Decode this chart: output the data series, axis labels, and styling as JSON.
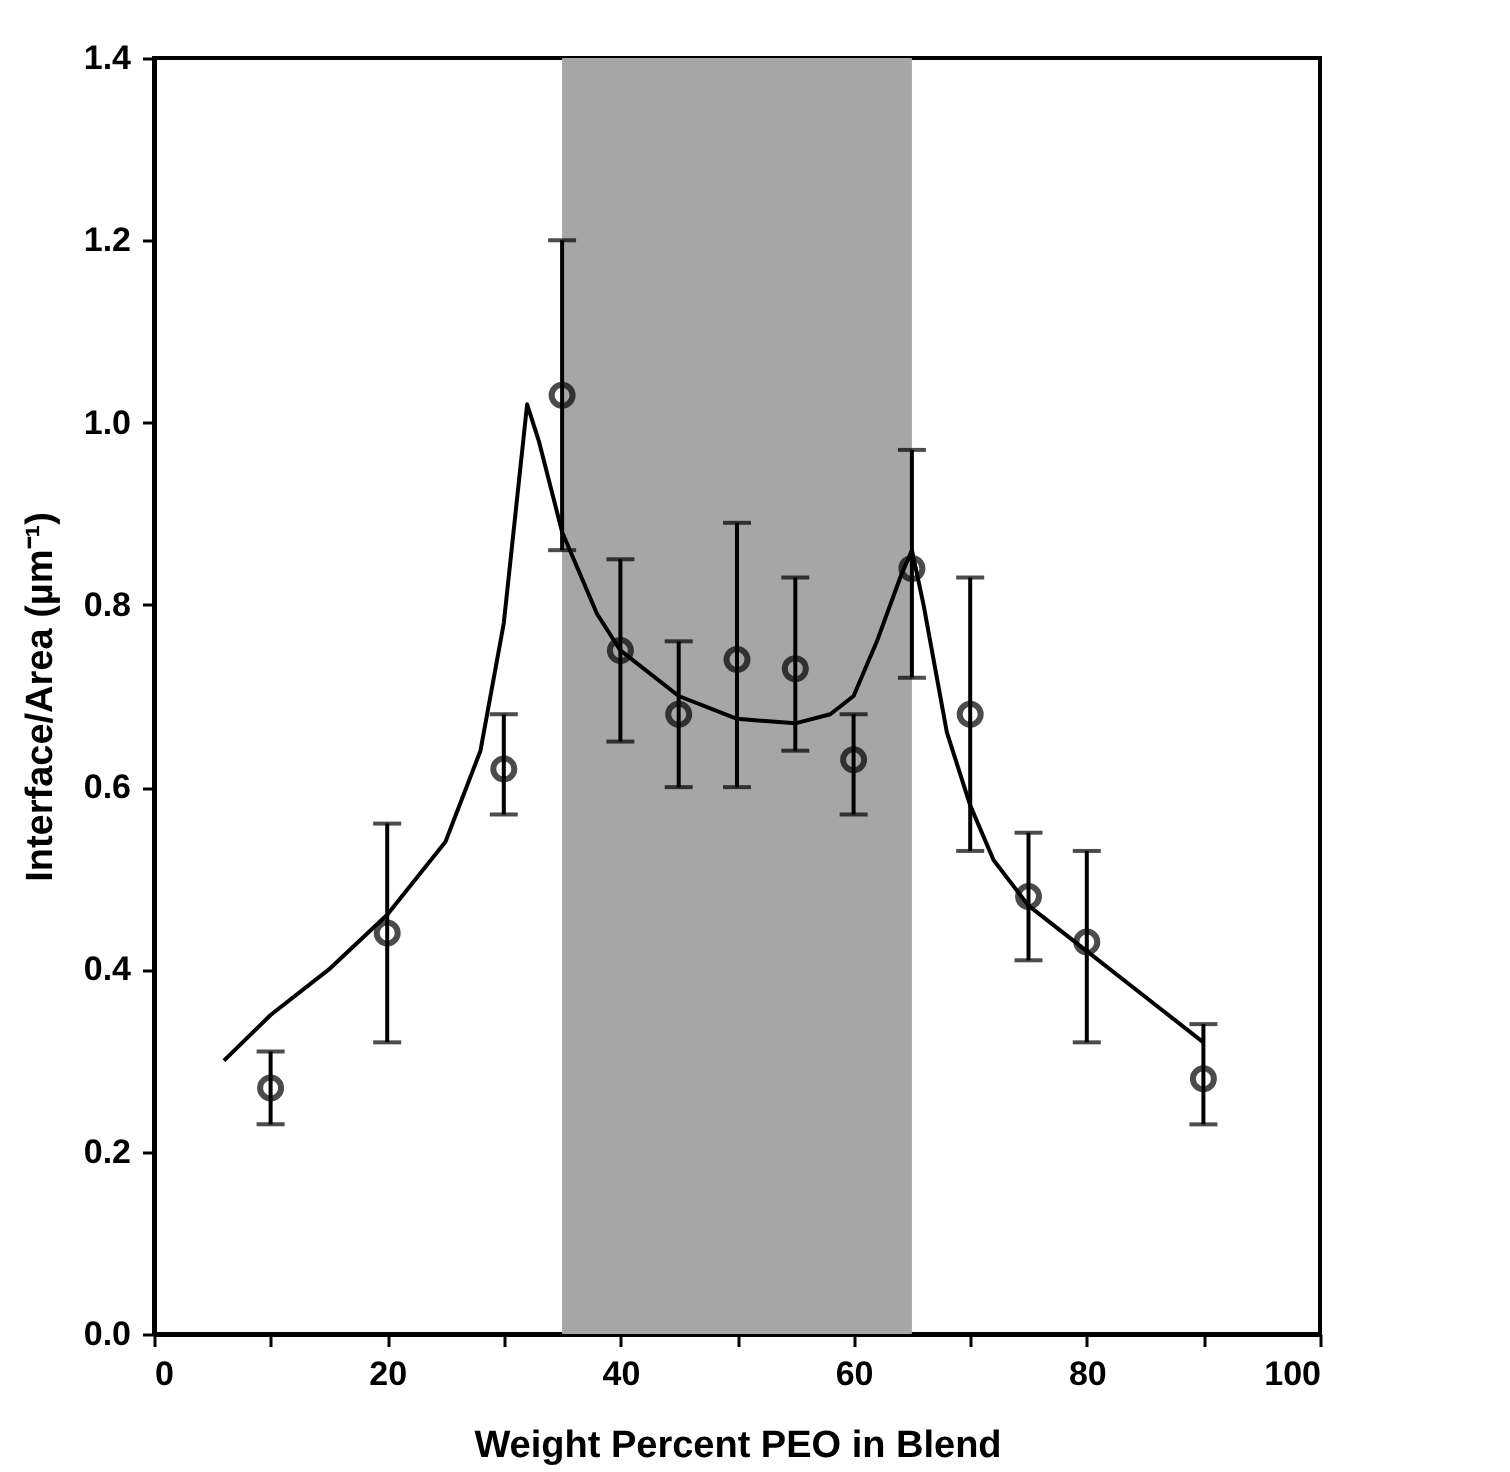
{
  "chart_data": {
    "type": "scatter",
    "xlabel": "Weight Percent PEO in Blend",
    "ylabel": "Interface/Area (µm⁻¹)",
    "xlim": [
      0,
      100
    ],
    "ylim": [
      0,
      1.4
    ],
    "xticks": [
      0,
      {
        "value": 10,
        "label": null
      },
      20,
      {
        "value": 30,
        "label": null
      },
      40,
      {
        "value": 50,
        "label": null
      },
      60,
      {
        "value": 70,
        "label": null
      },
      80,
      {
        "value": 90,
        "label": null
      },
      100
    ],
    "yticks": [
      {
        "value": 0,
        "label": "0.0"
      },
      {
        "value": 0.2,
        "label": "0.2"
      },
      {
        "value": 0.4,
        "label": "0.4"
      },
      {
        "value": 0.6,
        "label": "0.6"
      },
      {
        "value": 0.8,
        "label": "0.8"
      },
      {
        "value": 1.0,
        "label": "1.0"
      },
      {
        "value": 1.2,
        "label": "1.2"
      },
      {
        "value": 1.4,
        "label": "1.4"
      }
    ],
    "grid": false,
    "bands": [
      {
        "axis": "x",
        "from": 35,
        "to": 65,
        "color": "#a6a6a6"
      }
    ],
    "series": [
      {
        "marker": "circle",
        "color": "#000000",
        "x": [
          10,
          20,
          30,
          35,
          40,
          45,
          50,
          55,
          60,
          65,
          70,
          75,
          80,
          90
        ],
        "values": [
          0.27,
          0.44,
          0.62,
          1.03,
          0.75,
          0.68,
          0.74,
          0.73,
          0.63,
          0.84,
          0.68,
          0.48,
          0.43,
          0.28
        ],
        "errors": [
          [
            0.23,
            0.31
          ],
          [
            0.32,
            0.56
          ],
          [
            0.57,
            0.68
          ],
          [
            0.86,
            1.2
          ],
          [
            0.65,
            0.85
          ],
          [
            0.6,
            0.76
          ],
          [
            0.6,
            0.89
          ],
          [
            0.64,
            0.83
          ],
          [
            0.57,
            0.68
          ],
          [
            0.72,
            0.97
          ],
          [
            0.53,
            0.83
          ],
          [
            0.41,
            0.55
          ],
          [
            0.32,
            0.53
          ],
          [
            0.23,
            0.34
          ]
        ]
      },
      {
        "type": "line",
        "marker": "none",
        "color": "#000000",
        "x": [
          6,
          10,
          15,
          20,
          25,
          28,
          30,
          31,
          32,
          33,
          35,
          38,
          40,
          45,
          50,
          55,
          58,
          60,
          62,
          64,
          65,
          66,
          68,
          70,
          72,
          75,
          80,
          85,
          90
        ],
        "values": [
          0.3,
          0.35,
          0.4,
          0.46,
          0.54,
          0.64,
          0.78,
          0.9,
          1.02,
          0.98,
          0.88,
          0.79,
          0.75,
          0.7,
          0.675,
          0.67,
          0.68,
          0.7,
          0.76,
          0.83,
          0.86,
          0.8,
          0.66,
          0.58,
          0.52,
          0.47,
          0.42,
          0.37,
          0.32
        ]
      }
    ]
  }
}
